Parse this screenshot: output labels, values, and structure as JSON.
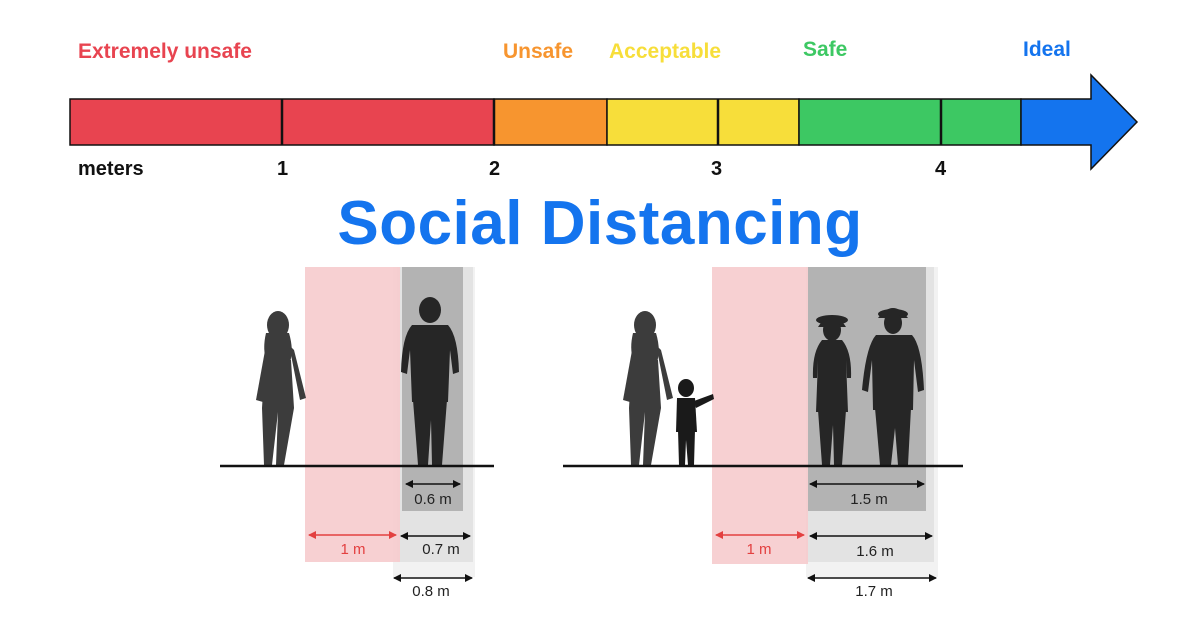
{
  "scale": {
    "categories": [
      {
        "label": "Extremely unsafe",
        "color": "#e84450",
        "range_m": [
          0,
          2
        ]
      },
      {
        "label": "Unsafe",
        "color": "#f7952f",
        "range_m": [
          2,
          2.5
        ]
      },
      {
        "label": "Acceptable",
        "color": "#f7de3a",
        "range_m": [
          2.5,
          3.4
        ]
      },
      {
        "label": "Safe",
        "color": "#3dc863",
        "range_m": [
          3.4,
          4.4
        ]
      },
      {
        "label": "Ideal",
        "color": "#1474ee",
        "range_m": [
          4.4,
          5
        ]
      }
    ],
    "unit_label": "meters",
    "ticks": [
      "1",
      "2",
      "3",
      "4"
    ]
  },
  "title": "Social Distancing",
  "diagram": {
    "left_group": {
      "gap_label": "1 m",
      "width_labels": [
        "0.6 m",
        "0.7 m",
        "0.8 m"
      ]
    },
    "right_group": {
      "gap_label": "1 m",
      "width_labels": [
        "1.5 m",
        "1.6 m",
        "1.7 m"
      ]
    }
  }
}
